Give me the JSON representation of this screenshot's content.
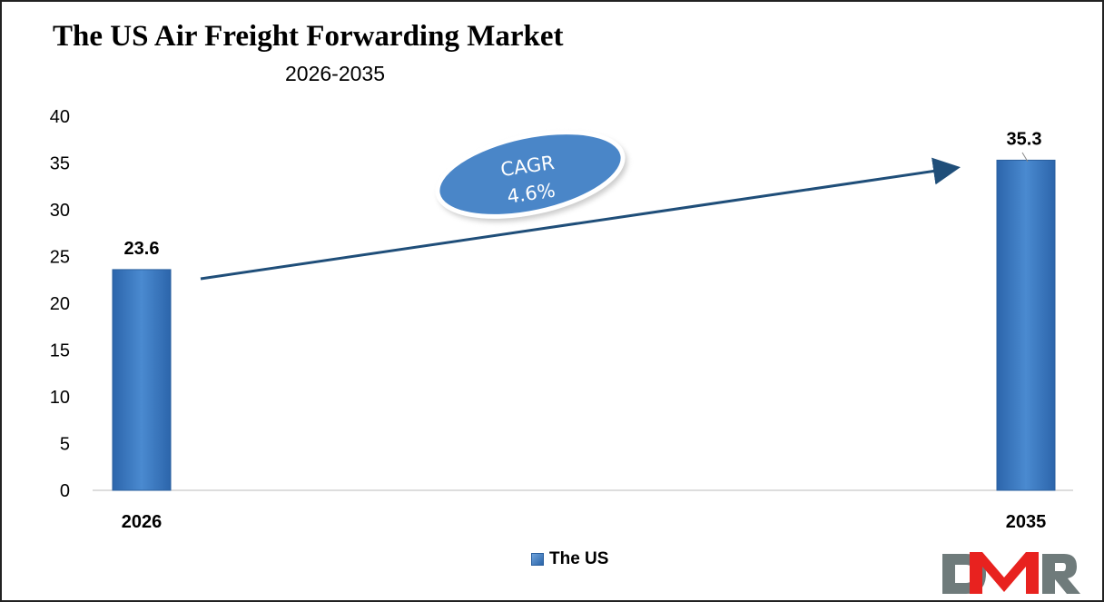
{
  "chart_data": {
    "type": "bar",
    "title": "The US Air Freight Forwarding Market",
    "subtitle": "2026-2035",
    "categories": [
      "2026",
      "2035"
    ],
    "series": [
      {
        "name": "The US",
        "values": [
          23.6,
          35.3
        ]
      }
    ],
    "data_labels": [
      "23.6",
      "35.3"
    ],
    "ylim": [
      0,
      40
    ],
    "yticks": [
      0,
      5,
      10,
      15,
      20,
      25,
      30,
      35,
      40
    ],
    "grid": false,
    "legend": "bottom",
    "annotation": {
      "line1": "CAGR",
      "line2": "4.6%"
    },
    "colors": {
      "bar": "#3a78c2",
      "arrow": "#1f4e79",
      "ellipse": "#4a86c8"
    }
  },
  "logo": {
    "text": "DMR",
    "colors": {
      "d": "#6f7b7b",
      "m": "#e8221f",
      "r": "#6f7b7b"
    }
  }
}
